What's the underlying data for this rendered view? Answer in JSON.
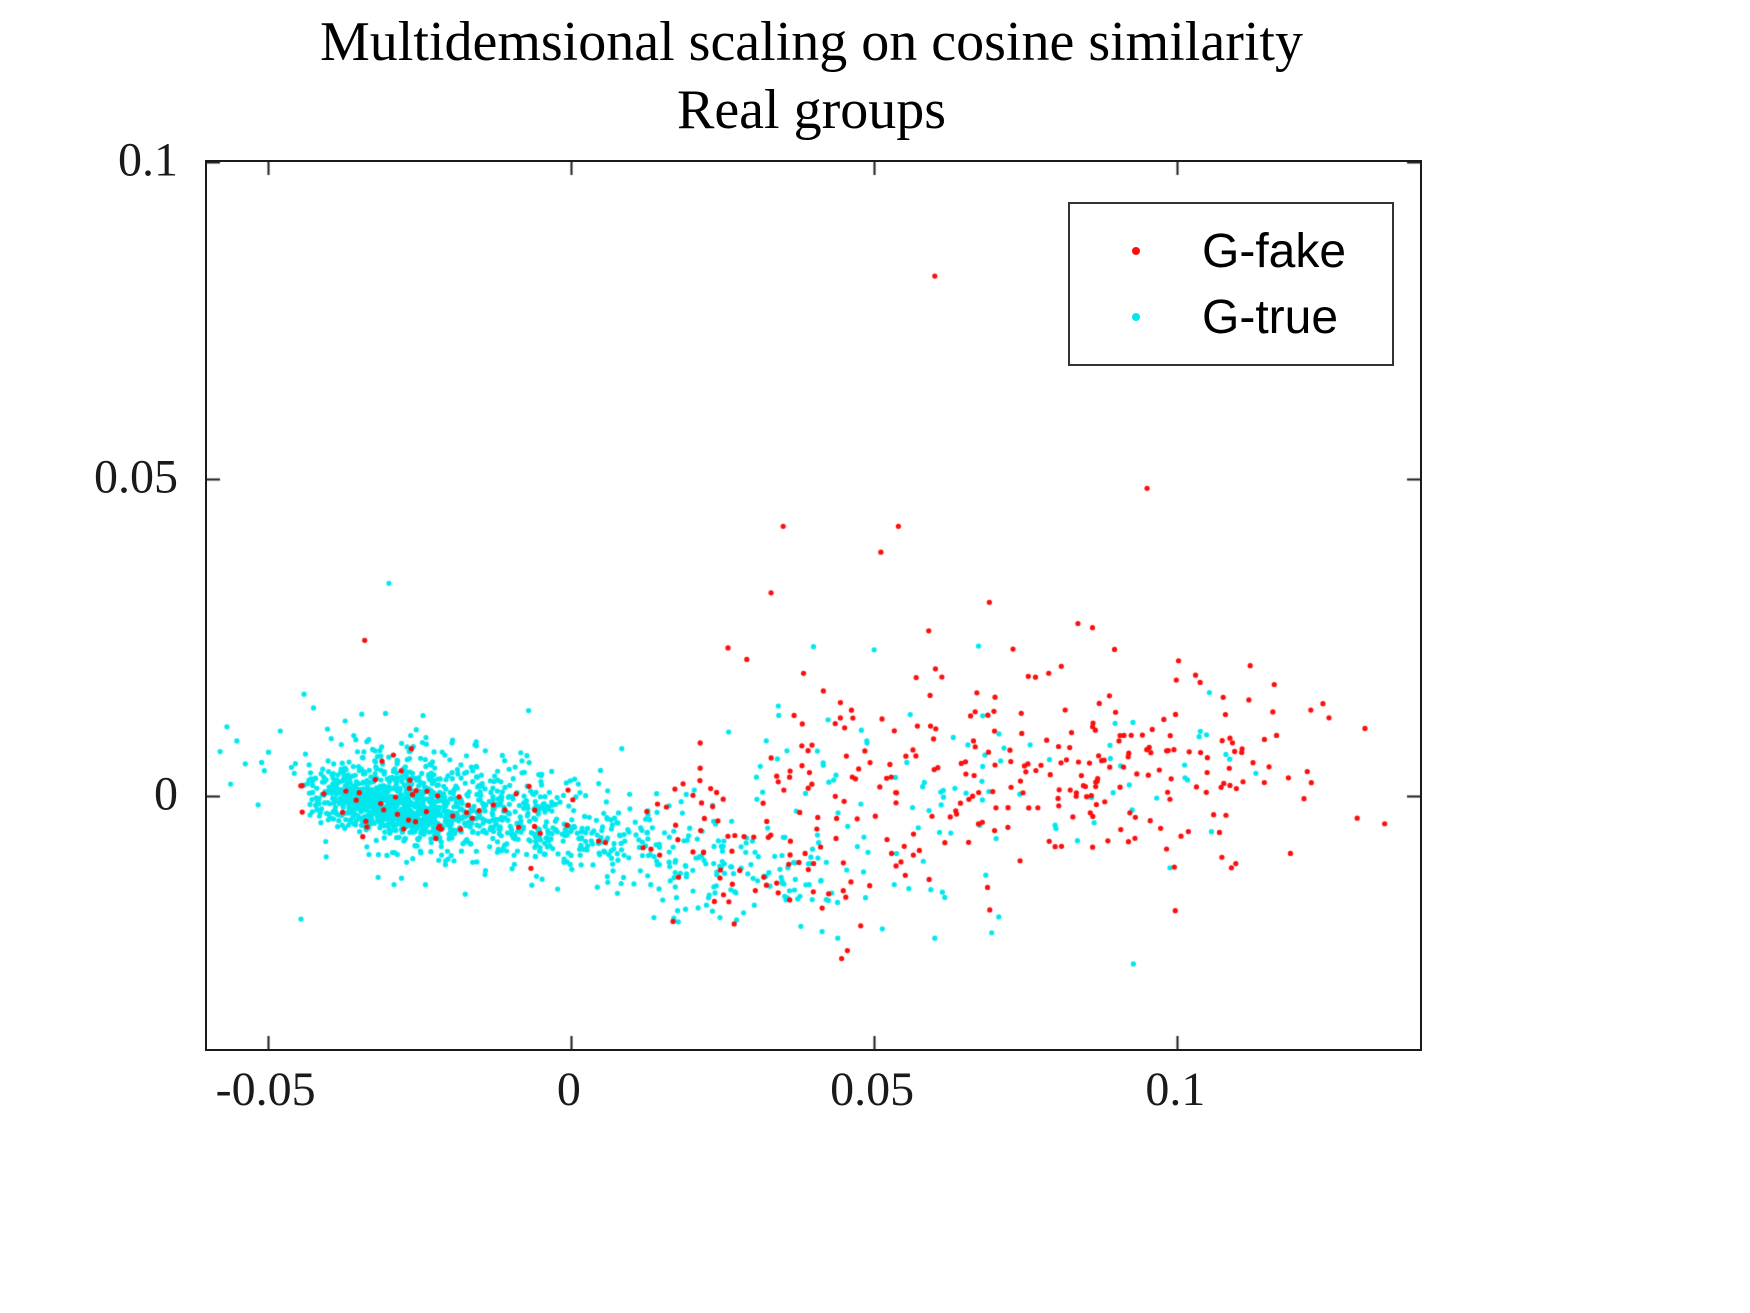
{
  "chart_data": {
    "type": "scatter",
    "title": "Multidemsional scaling on cosine similarity",
    "subtitle": "Real groups",
    "xlabel": "",
    "ylabel": "",
    "xlim": [
      -0.06,
      0.14
    ],
    "ylim": [
      -0.04,
      0.1
    ],
    "xticks": [
      {
        "value": -0.05,
        "label": "-0.05"
      },
      {
        "value": 0,
        "label": "0"
      },
      {
        "value": 0.05,
        "label": "0.05"
      },
      {
        "value": 0.1,
        "label": "0.1"
      }
    ],
    "yticks": [
      {
        "value": 0,
        "label": "0"
      },
      {
        "value": 0.05,
        "label": "0.05"
      },
      {
        "value": 0.1,
        "label": "0.1"
      }
    ],
    "grid": false,
    "legend_position": "top-right",
    "marker_radius_px": 2.6,
    "axis_color": "#1a1a1a",
    "seed": 7,
    "draw_order": [
      "G-true",
      "G-fake"
    ],
    "series": [
      {
        "name": "G-fake",
        "color": "#fb0e0c",
        "description": "red scatter points, dispersed mainly over x 0 to 0.13, y -0.02 to 0.03",
        "clusters": [
          {
            "count": 150,
            "cx": 0.082,
            "cy": 0.005,
            "sx": 0.02,
            "sy": 0.008,
            "rho": 0
          },
          {
            "count": 90,
            "cx": 0.045,
            "cy": 0.003,
            "sx": 0.015,
            "sy": 0.009,
            "rho": 0
          },
          {
            "count": 55,
            "cx": -0.018,
            "cy": -0.003,
            "sx": 0.013,
            "sy": 0.004,
            "rho": -0.3
          },
          {
            "count": 50,
            "cx": 0.035,
            "cy": -0.012,
            "sx": 0.015,
            "sy": 0.005,
            "rho": -0.3
          },
          {
            "count": 35,
            "cx": 0.107,
            "cy": 0.002,
            "sx": 0.01,
            "sy": 0.009,
            "rho": 0
          }
        ],
        "points": [
          [
            0.06,
            0.082
          ],
          [
            0.095,
            0.0485
          ],
          [
            0.035,
            0.0425
          ],
          [
            0.054,
            0.0425
          ],
          [
            0.033,
            0.032
          ],
          [
            0.069,
            0.0305
          ],
          [
            -0.034,
            0.0245
          ],
          [
            0.122,
            0.0135
          ],
          [
            0.124,
            0.0145
          ],
          [
            0.086,
            0.0265
          ],
          [
            0.059,
            0.026
          ],
          [
            0.112,
            0.0205
          ],
          [
            0.103,
            0.019
          ]
        ]
      },
      {
        "name": "G-true",
        "color": "#00e8ee",
        "description": "cyan scatter points, dense cluster around (-0.03, 0) with tail curving down-right toward x 0.06",
        "clusters": [
          {
            "count": 700,
            "cx": -0.03,
            "cy": -0.0015,
            "sx": 0.006,
            "sy": 0.0025,
            "rho": -0.35
          },
          {
            "count": 400,
            "cx": -0.025,
            "cy": 0.0,
            "sx": 0.01,
            "sy": 0.005,
            "rho": -0.3
          },
          {
            "count": 300,
            "cx": -0.005,
            "cy": -0.004,
            "sx": 0.01,
            "sy": 0.004,
            "rho": -0.5
          },
          {
            "count": 180,
            "cx": 0.022,
            "cy": -0.01,
            "sx": 0.013,
            "sy": 0.005,
            "rho": -0.4
          },
          {
            "count": 90,
            "cx": 0.055,
            "cy": -0.001,
            "sx": 0.02,
            "sy": 0.008,
            "rho": 0
          },
          {
            "count": 18,
            "cx": 0.098,
            "cy": 0.001,
            "sx": 0.011,
            "sy": 0.006,
            "rho": 0
          }
        ],
        "points": [
          [
            -0.03,
            0.0335
          ],
          [
            0.04,
            0.0235
          ],
          [
            0.05,
            0.023
          ],
          [
            -0.044,
            0.016
          ],
          [
            -0.0445,
            -0.0195
          ],
          [
            0.06,
            -0.0225
          ],
          [
            0.044,
            -0.0225
          ],
          [
            0.108,
            0.0065
          ]
        ]
      }
    ]
  }
}
